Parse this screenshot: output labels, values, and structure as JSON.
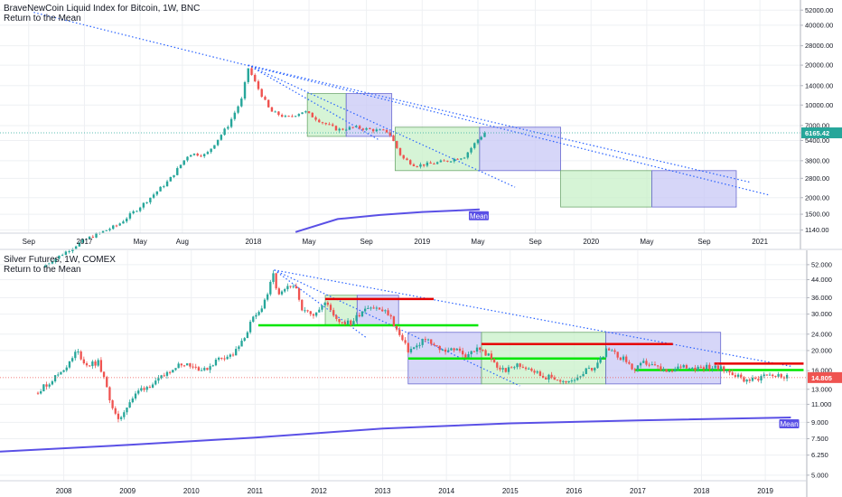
{
  "colors": {
    "up": "#26a69a",
    "down": "#ef5350",
    "trend": "#2962ff",
    "mean_line": "#5a50e6",
    "green_zone": "#c8f0c8",
    "blue_zone": "#c8c8f5",
    "support": "#00e600",
    "resistance": "#e60000",
    "price_line_top": "#26a69a",
    "price_line_bottom": "#ef5350",
    "grid": "#eef0f3"
  },
  "chart_data": [
    {
      "type": "candlestick",
      "title": "BraveNewCoin Liquid Index for Bitcoin, 1W, BNC",
      "subtitle": "Return to the Mean",
      "y_scale": "log",
      "y_ticks": [
        "52000.00",
        "40000.00",
        "28000.00",
        "20000.00",
        "14000.00",
        "10000.00",
        "7000.00",
        "5400.00",
        "3800.00",
        "2800.00",
        "2000.00",
        "1500.00",
        "1140.00"
      ],
      "x_ticks": [
        "Sep",
        "2017",
        "May",
        "Aug",
        "2018",
        "May",
        "Sep",
        "2019",
        "May",
        "Sep",
        "2020",
        "May",
        "Sep",
        "2021"
      ],
      "last_price": "6165.42",
      "mean_label": "Mean",
      "path": [
        [
          2016.75,
          600
        ],
        [
          2017.0,
          960
        ],
        [
          2017.2,
          1250
        ],
        [
          2017.35,
          1800
        ],
        [
          2017.5,
          2700
        ],
        [
          2017.62,
          4300
        ],
        [
          2017.72,
          4200
        ],
        [
          2017.85,
          7000
        ],
        [
          2017.93,
          11000
        ],
        [
          2017.97,
          19000
        ],
        [
          2018.02,
          14000
        ],
        [
          2018.1,
          9000
        ],
        [
          2018.2,
          8000
        ],
        [
          2018.3,
          9000
        ],
        [
          2018.4,
          7500
        ],
        [
          2018.5,
          6500
        ],
        [
          2018.6,
          6800
        ],
        [
          2018.7,
          6500
        ],
        [
          2018.8,
          6300
        ],
        [
          2018.88,
          4000
        ],
        [
          2018.96,
          3500
        ],
        [
          2019.05,
          3600
        ],
        [
          2019.15,
          3800
        ],
        [
          2019.25,
          4100
        ],
        [
          2019.33,
          5500
        ],
        [
          2019.37,
          6165
        ]
      ],
      "mean_curve": [
        [
          2018.25,
          1100
        ],
        [
          2018.5,
          1380
        ],
        [
          2018.75,
          1480
        ],
        [
          2019.0,
          1560
        ],
        [
          2019.2,
          1600
        ],
        [
          2019.34,
          1630
        ]
      ],
      "trendlines": [
        [
          2016.7,
          50000,
          2021.05,
          2100
        ],
        [
          2017.97,
          20000,
          2020.95,
          2600
        ],
        [
          2017.97,
          20000,
          2018.75,
          5400
        ],
        [
          2017.97,
          20000,
          2019.55,
          2400
        ]
      ],
      "zones": [
        {
          "kind": "green",
          "x1": 2018.32,
          "x2": 2018.55,
          "y1": 5800,
          "y2": 12200
        },
        {
          "kind": "blue",
          "x1": 2018.55,
          "x2": 2018.82,
          "y1": 5800,
          "y2": 12200
        },
        {
          "kind": "green",
          "x1": 2018.84,
          "x2": 2019.34,
          "y1": 3200,
          "y2": 6800
        },
        {
          "kind": "blue",
          "x1": 2019.34,
          "x2": 2019.82,
          "y1": 3200,
          "y2": 6800
        },
        {
          "kind": "green",
          "x1": 2019.82,
          "x2": 2020.36,
          "y1": 1700,
          "y2": 3200
        },
        {
          "kind": "blue",
          "x1": 2020.36,
          "x2": 2020.86,
          "y1": 1700,
          "y2": 3200
        }
      ]
    },
    {
      "type": "candlestick",
      "title": "Silver Futures, 1W, COMEX",
      "subtitle": "Return to the Mean",
      "y_scale": "log",
      "y_ticks": [
        "52.000",
        "44.000",
        "36.000",
        "30.000",
        "24.000",
        "20.000",
        "16.000",
        "13.000",
        "11.000",
        "9.000",
        "7.500",
        "6.250",
        "5.000"
      ],
      "x_ticks": [
        "2008",
        "2009",
        "2010",
        "2011",
        "2012",
        "2013",
        "2014",
        "2015",
        "2016",
        "2017",
        "2018",
        "2019"
      ],
      "last_price": "14.805",
      "mean_label": "Mean",
      "path": [
        [
          2007.55,
          12.5
        ],
        [
          2007.75,
          13.8
        ],
        [
          2008.1,
          17.5
        ],
        [
          2008.2,
          20
        ],
        [
          2008.35,
          17
        ],
        [
          2008.55,
          17.5
        ],
        [
          2008.75,
          11
        ],
        [
          2008.85,
          9
        ],
        [
          2009.0,
          11
        ],
        [
          2009.2,
          13
        ],
        [
          2009.45,
          14
        ],
        [
          2009.7,
          16.5
        ],
        [
          2009.9,
          17.5
        ],
        [
          2010.2,
          16
        ],
        [
          2010.45,
          18.5
        ],
        [
          2010.65,
          19
        ],
        [
          2010.8,
          22
        ],
        [
          2010.95,
          28
        ],
        [
          2011.05,
          30
        ],
        [
          2011.2,
          38
        ],
        [
          2011.3,
          48
        ],
        [
          2011.35,
          36
        ],
        [
          2011.5,
          40
        ],
        [
          2011.65,
          40
        ],
        [
          2011.75,
          31
        ],
        [
          2011.9,
          30
        ],
        [
          2012.1,
          34
        ],
        [
          2012.3,
          28
        ],
        [
          2012.5,
          27
        ],
        [
          2012.75,
          33
        ],
        [
          2012.9,
          32
        ],
        [
          2013.1,
          30
        ],
        [
          2013.25,
          24
        ],
        [
          2013.4,
          20
        ],
        [
          2013.55,
          21
        ],
        [
          2013.65,
          23
        ],
        [
          2013.8,
          21
        ],
        [
          2013.95,
          20
        ],
        [
          2014.1,
          20.5
        ],
        [
          2014.3,
          19
        ],
        [
          2014.5,
          20.5
        ],
        [
          2014.65,
          19
        ],
        [
          2014.8,
          16.5
        ],
        [
          2014.95,
          16
        ],
        [
          2015.1,
          17
        ],
        [
          2015.3,
          16.5
        ],
        [
          2015.5,
          15
        ],
        [
          2015.7,
          14.7
        ],
        [
          2015.9,
          13.8
        ],
        [
          2016.05,
          15
        ],
        [
          2016.2,
          16
        ],
        [
          2016.35,
          17
        ],
        [
          2016.5,
          20
        ],
        [
          2016.6,
          19.5
        ],
        [
          2016.8,
          18
        ],
        [
          2016.95,
          16
        ],
        [
          2017.1,
          17.5
        ],
        [
          2017.3,
          16.5
        ],
        [
          2017.5,
          15.5
        ],
        [
          2017.7,
          17
        ],
        [
          2017.9,
          16.5
        ],
        [
          2018.1,
          16.8
        ],
        [
          2018.3,
          16.3
        ],
        [
          2018.5,
          15.5
        ],
        [
          2018.65,
          14.5
        ],
        [
          2018.85,
          14.5
        ],
        [
          2019.0,
          15.5
        ],
        [
          2019.15,
          15.2
        ],
        [
          2019.3,
          14.9
        ],
        [
          2019.38,
          14.8
        ]
      ],
      "mean_curve": [
        [
          2007.0,
          6.5
        ],
        [
          2009.0,
          7.0
        ],
        [
          2011.0,
          7.6
        ],
        [
          2013.0,
          8.4
        ],
        [
          2015.0,
          8.9
        ],
        [
          2017.0,
          9.2
        ],
        [
          2019.4,
          9.5
        ]
      ],
      "trendlines": [
        [
          2011.3,
          49,
          2019.4,
          16.8
        ],
        [
          2011.3,
          49,
          2012.75,
          23
        ],
        [
          2011.3,
          49,
          2015.15,
          13.5
        ]
      ],
      "zones": [
        {
          "kind": "green",
          "x1": 2012.1,
          "x2": 2012.6,
          "y1": 26.5,
          "y2": 37
        },
        {
          "kind": "blue",
          "x1": 2012.6,
          "x2": 2013.25,
          "y1": 26.5,
          "y2": 37
        },
        {
          "kind": "blue",
          "x1": 2013.4,
          "x2": 2014.55,
          "y1": 13.8,
          "y2": 24.5
        },
        {
          "kind": "green",
          "x1": 2014.55,
          "x2": 2016.5,
          "y1": 13.8,
          "y2": 24.5
        },
        {
          "kind": "blue",
          "x1": 2016.5,
          "x2": 2018.3,
          "y1": 13.8,
          "y2": 24.5
        }
      ],
      "support": [
        [
          2011.05,
          2014.5,
          26.5
        ],
        [
          2013.4,
          2016.5,
          18.3
        ],
        [
          2016.95,
          2019.6,
          16.1
        ]
      ],
      "resistance": [
        [
          2012.1,
          2013.8,
          35.5
        ],
        [
          2014.55,
          2016.5,
          21.5
        ],
        [
          2016.5,
          2017.55,
          21.5
        ],
        [
          2018.2,
          2019.6,
          17.3
        ]
      ]
    }
  ]
}
